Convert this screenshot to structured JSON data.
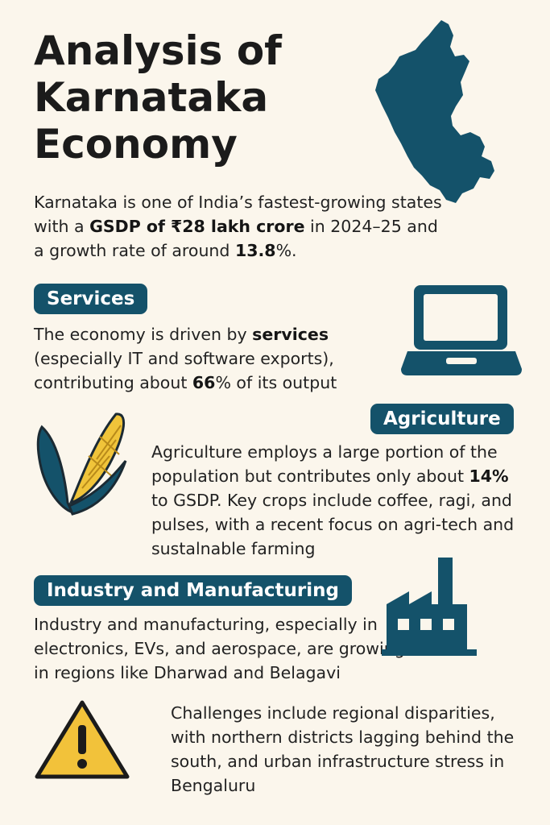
{
  "title": {
    "line1": "Analysis of",
    "line2": "Karnataka",
    "line3": "Economy"
  },
  "intro": {
    "part1": "Karnataka is one of India’s fastest-growing states with a ",
    "gsdp": "GSDP of ₹28 lakh crore",
    "part2": " in 2024–25 and a growth rate of around ",
    "growth": "13.8",
    "part3": "%."
  },
  "services": {
    "badge": "Services",
    "part1": "The economy is driven by ",
    "bold1": "services",
    "part2": " (especially IT and software exports), contributing about ",
    "bold2": "66",
    "part3": "% of its output"
  },
  "agriculture": {
    "badge": "Agriculture",
    "part1": "Agriculture employs a large portion of the population but contributes only about ",
    "bold1": "14%",
    "part2": " to GSDP. Key crops include coffee, ragi, and pulses, with a recent focus on agri-tech and sustalnable farming"
  },
  "industry": {
    "badge": "Industry and Manufacturing",
    "text": "Industry and manufacturing, especially in electronics, EVs, and aerospace, are growing in regions like Dharwad and  Belagavi"
  },
  "challenges": {
    "text": "Challenges include regional disparities, with northern districts lagging behind the south, and urban infrastructure stress in Bengaluru"
  },
  "colors": {
    "background": "#fbf6ec",
    "accent": "#14526a",
    "corn": "#f0c43a",
    "warning": "#f2c23a"
  },
  "icons": {
    "map": "karnataka-map-icon",
    "laptop": "laptop-icon",
    "corn": "corn-icon",
    "factory": "factory-icon",
    "warning": "warning-icon"
  }
}
